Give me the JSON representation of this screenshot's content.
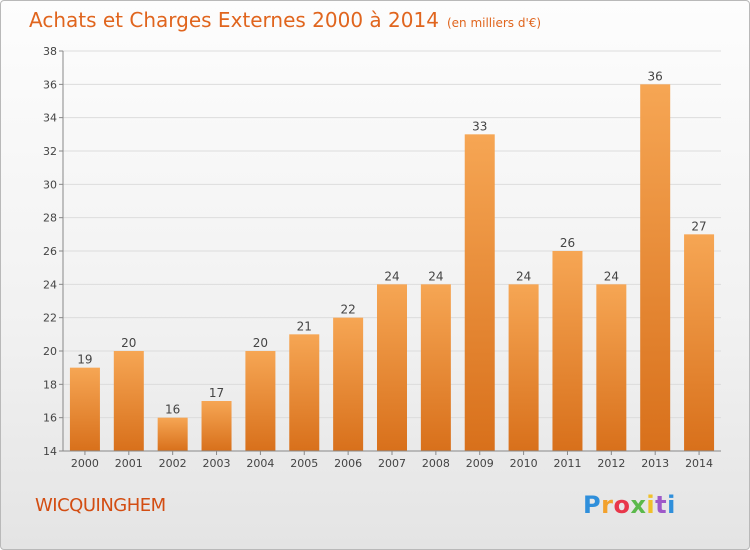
{
  "chart_data": {
    "type": "bar",
    "title": "Achats et Charges Externes 2000 à 2014",
    "subtitle": "(en milliers d'€)",
    "categories": [
      "2000",
      "2001",
      "2002",
      "2003",
      "2004",
      "2005",
      "2006",
      "2007",
      "2008",
      "2009",
      "2010",
      "2011",
      "2012",
      "2013",
      "2014"
    ],
    "values": [
      19,
      20,
      16,
      17,
      20,
      21,
      22,
      24,
      24,
      33,
      24,
      26,
      24,
      36,
      27
    ],
    "ylim": [
      14,
      38
    ],
    "yticks": [
      14,
      16,
      18,
      20,
      22,
      24,
      26,
      28,
      30,
      32,
      34,
      36,
      38
    ],
    "grid": true,
    "bar_color_top": "#f6a654",
    "bar_color_bottom": "#d8701b"
  },
  "commune_name": "WICQUINGHEM",
  "brand": {
    "letters": [
      "P",
      "r",
      "o",
      "x",
      "i",
      "t",
      "i"
    ]
  }
}
